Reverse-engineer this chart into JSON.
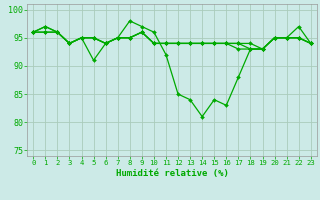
{
  "title": "",
  "xlabel": "Humidité relative (%)",
  "ylabel": "",
  "bg_color": "#cceae7",
  "grid_color": "#aaccbb",
  "line_color": "#00aa00",
  "marker_color": "#00aa00",
  "xlim": [
    -0.5,
    23.5
  ],
  "ylim": [
    74,
    101
  ],
  "yticks": [
    75,
    80,
    85,
    90,
    95,
    100
  ],
  "xticks": [
    0,
    1,
    2,
    3,
    4,
    5,
    6,
    7,
    8,
    9,
    10,
    11,
    12,
    13,
    14,
    15,
    16,
    17,
    18,
    19,
    20,
    21,
    22,
    23
  ],
  "series": [
    [
      96,
      97,
      96,
      94,
      95,
      91,
      94,
      95,
      98,
      97,
      96,
      92,
      85,
      84,
      81,
      84,
      83,
      88,
      93,
      93,
      95,
      95,
      97,
      94
    ],
    [
      96,
      97,
      96,
      94,
      95,
      95,
      94,
      95,
      95,
      96,
      94,
      94,
      94,
      94,
      94,
      94,
      94,
      93,
      93,
      93,
      95,
      95,
      95,
      94
    ],
    [
      96,
      96,
      96,
      94,
      95,
      95,
      94,
      95,
      95,
      96,
      94,
      94,
      94,
      94,
      94,
      94,
      94,
      94,
      93,
      93,
      95,
      95,
      95,
      94
    ],
    [
      96,
      96,
      96,
      94,
      95,
      95,
      94,
      95,
      95,
      96,
      94,
      94,
      94,
      94,
      94,
      94,
      94,
      94,
      94,
      93,
      95,
      95,
      95,
      94
    ]
  ]
}
